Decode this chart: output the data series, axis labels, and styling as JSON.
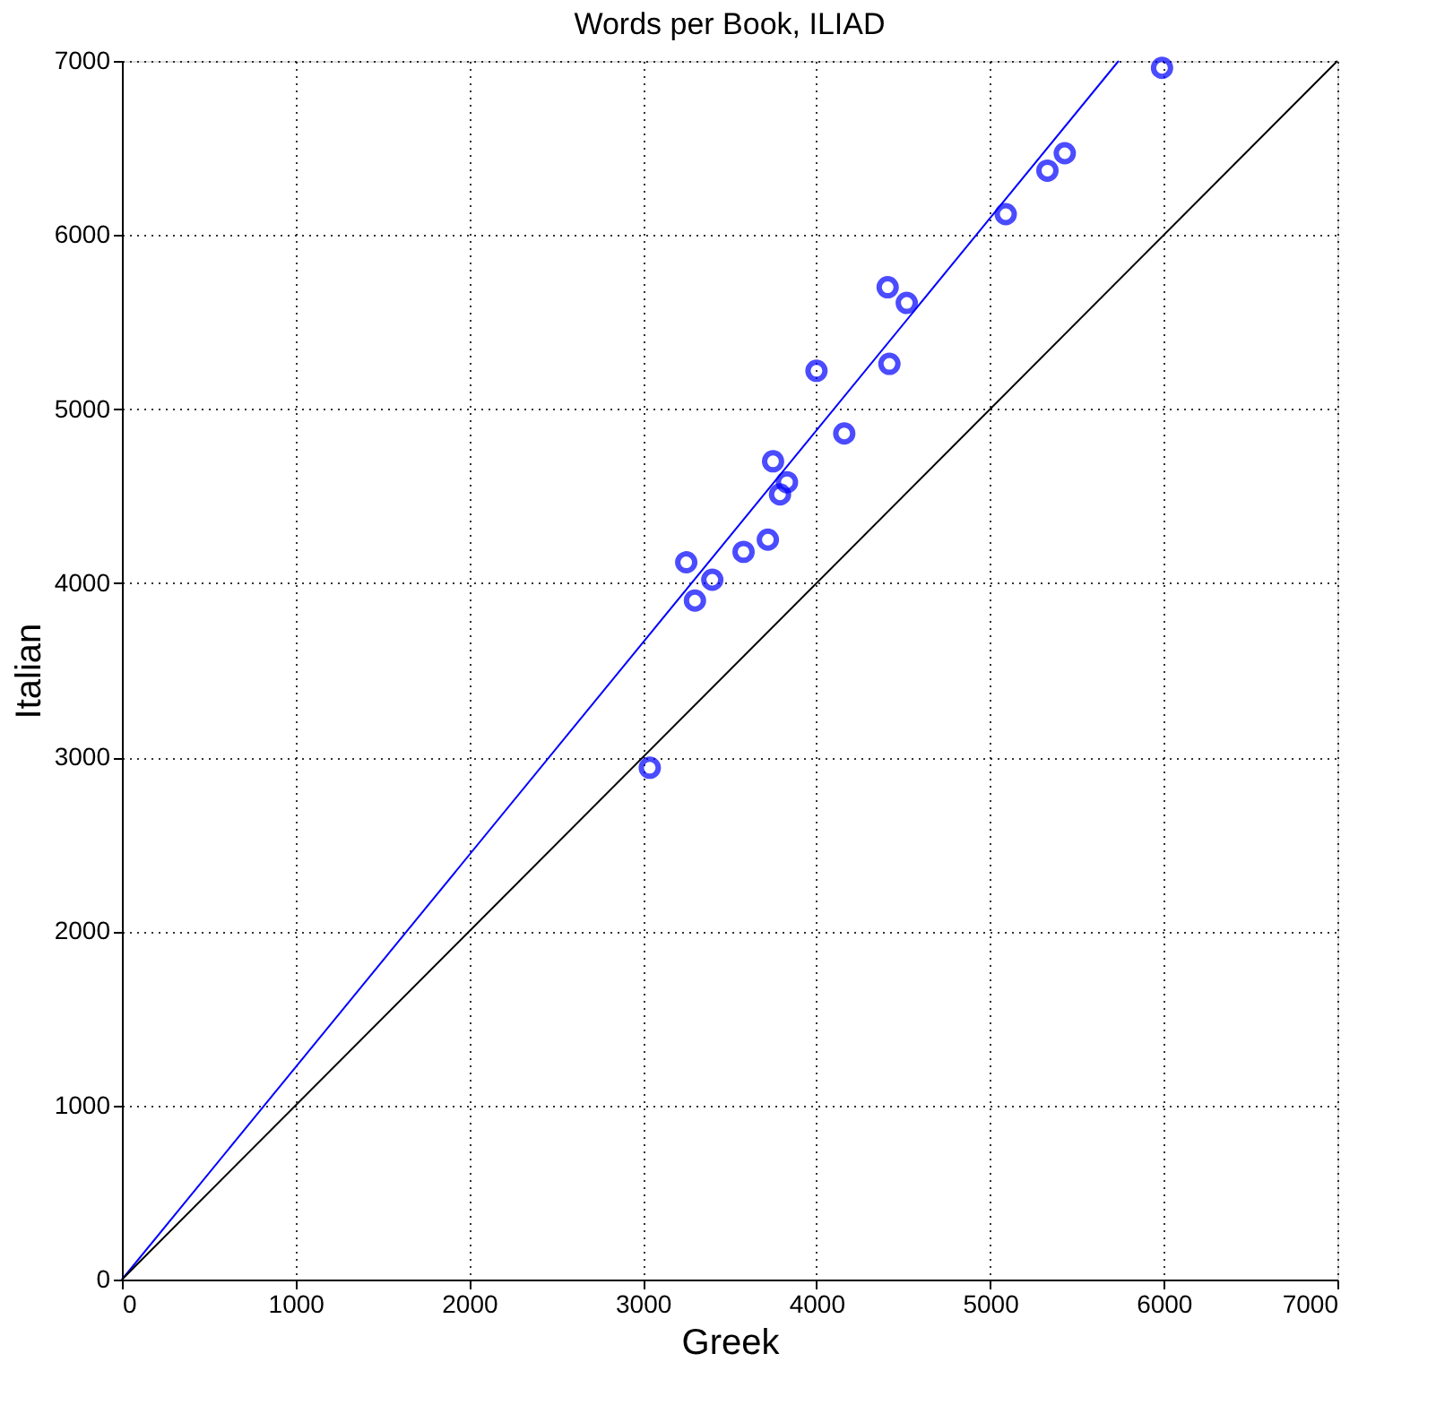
{
  "chart_data": {
    "type": "scatter",
    "title": "Words per Book, ILIAD",
    "xlabel": "Greek",
    "ylabel": "Italian",
    "xlim": [
      0,
      7000
    ],
    "ylim": [
      0,
      7000
    ],
    "xticks": [
      0,
      1000,
      2000,
      3000,
      4000,
      5000,
      6000,
      7000
    ],
    "yticks": [
      0,
      1000,
      2000,
      3000,
      4000,
      5000,
      6000,
      7000
    ],
    "grid": true,
    "marker": "circle",
    "series": [
      {
        "color": "#0000ff",
        "x": [
          3040,
          3250,
          3300,
          3400,
          3580,
          3720,
          3750,
          3790,
          3830,
          4000,
          4160,
          4410,
          4420,
          4520,
          5090,
          5330,
          5430,
          5990
        ],
        "values": [
          2940,
          4120,
          3900,
          4020,
          4180,
          4250,
          4700,
          4510,
          4580,
          5220,
          4860,
          5700,
          5260,
          5610,
          6120,
          6370,
          6470,
          6960
        ]
      },
      {
        "type": "line",
        "color": "#0000ff",
        "marker": "none",
        "line_style": "solid",
        "x": [
          0,
          5740
        ],
        "values": [
          0,
          7000
        ]
      },
      {
        "type": "line",
        "color": "#000000",
        "marker": "none",
        "line_style": "solid",
        "x": [
          0,
          7000
        ],
        "values": [
          0,
          7000
        ]
      }
    ]
  }
}
